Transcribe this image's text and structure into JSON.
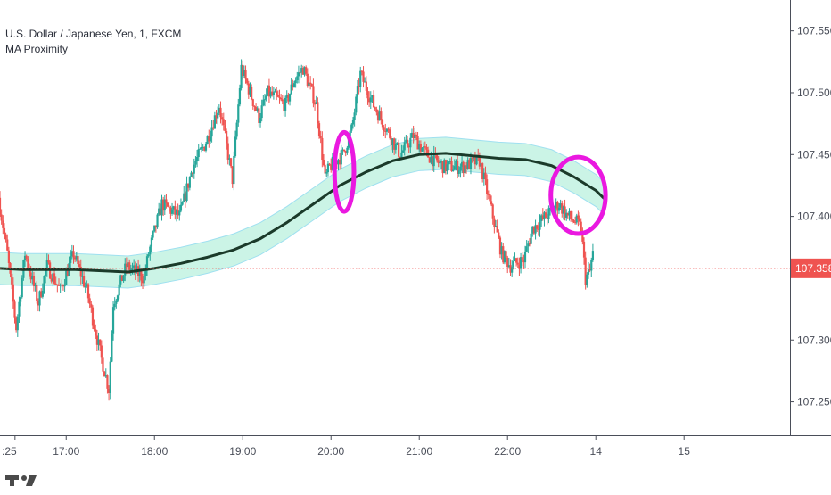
{
  "legend": {
    "symbol": "U.S. Dollar / Japanese Yen, 1, FXCM",
    "indicator": "MA Proximity"
  },
  "chart_data": {
    "type": "candlestick",
    "ylim": [
      107.223,
      107.575
    ],
    "x_range_hours": [
      16.25,
      25.2
    ],
    "y_ticks": [
      "107.550",
      "107.500",
      "107.450",
      "107.400",
      "107.358",
      "107.300",
      "107.250"
    ],
    "y_tick_values": [
      107.55,
      107.5,
      107.45,
      107.4,
      107.3,
      107.25
    ],
    "x_ticks": [
      ":25",
      "17:00",
      "18:00",
      "19:00",
      "20:00",
      "21:00",
      "22:00",
      "14",
      "15"
    ],
    "x_tick_values": [
      16.42,
      17.0,
      18.0,
      19.0,
      20.0,
      21.0,
      22.0,
      23.0,
      24.0
    ],
    "current_price": {
      "label": "107.358",
      "value": 107.358
    },
    "price_path": [
      [
        16.25,
        107.415
      ],
      [
        16.35,
        107.37
      ],
      [
        16.45,
        107.31
      ],
      [
        16.55,
        107.37
      ],
      [
        16.7,
        107.33
      ],
      [
        16.8,
        107.36
      ],
      [
        16.95,
        107.34
      ],
      [
        17.1,
        107.37
      ],
      [
        17.25,
        107.34
      ],
      [
        17.4,
        107.29
      ],
      [
        17.5,
        107.26
      ],
      [
        17.55,
        107.33
      ],
      [
        17.7,
        107.36
      ],
      [
        17.9,
        107.35
      ],
      [
        17.95,
        107.37
      ],
      [
        18.1,
        107.41
      ],
      [
        18.3,
        107.4
      ],
      [
        18.45,
        107.44
      ],
      [
        18.6,
        107.46
      ],
      [
        18.75,
        107.49
      ],
      [
        18.9,
        107.43
      ],
      [
        19.0,
        107.52
      ],
      [
        19.2,
        107.48
      ],
      [
        19.3,
        107.5
      ],
      [
        19.5,
        107.49
      ],
      [
        19.6,
        107.51
      ],
      [
        19.7,
        107.52
      ],
      [
        19.85,
        107.49
      ],
      [
        19.95,
        107.43
      ],
      [
        20.0,
        107.44
      ],
      [
        20.15,
        107.45
      ],
      [
        20.25,
        107.47
      ],
      [
        20.35,
        107.515
      ],
      [
        20.5,
        107.49
      ],
      [
        20.65,
        107.47
      ],
      [
        20.8,
        107.45
      ],
      [
        20.95,
        107.465
      ],
      [
        21.1,
        107.45
      ],
      [
        21.3,
        107.44
      ],
      [
        21.5,
        107.44
      ],
      [
        21.7,
        107.445
      ],
      [
        21.85,
        107.4
      ],
      [
        21.95,
        107.37
      ],
      [
        22.05,
        107.36
      ],
      [
        22.2,
        107.365
      ],
      [
        22.3,
        107.39
      ],
      [
        22.45,
        107.4
      ],
      [
        22.6,
        107.41
      ],
      [
        22.7,
        107.4
      ],
      [
        22.8,
        107.395
      ],
      [
        22.85,
        107.39
      ],
      [
        22.9,
        107.35
      ],
      [
        22.95,
        107.355
      ],
      [
        22.98,
        107.37
      ]
    ],
    "moving_average": [
      [
        16.25,
        107.358
      ],
      [
        16.5,
        107.357
      ],
      [
        16.8,
        107.357
      ],
      [
        17.1,
        107.357
      ],
      [
        17.4,
        107.356
      ],
      [
        17.7,
        107.355
      ],
      [
        18.0,
        107.358
      ],
      [
        18.3,
        107.362
      ],
      [
        18.6,
        107.367
      ],
      [
        18.9,
        107.373
      ],
      [
        19.2,
        107.382
      ],
      [
        19.5,
        107.395
      ],
      [
        19.8,
        107.41
      ],
      [
        20.1,
        107.425
      ],
      [
        20.4,
        107.436
      ],
      [
        20.7,
        107.445
      ],
      [
        21.0,
        107.45
      ],
      [
        21.3,
        107.451
      ],
      [
        21.6,
        107.449
      ],
      [
        21.9,
        107.447
      ],
      [
        22.2,
        107.446
      ],
      [
        22.5,
        107.441
      ],
      [
        22.75,
        107.432
      ],
      [
        23.0,
        107.421
      ],
      [
        23.1,
        107.414
      ]
    ],
    "band_half_width": 0.013,
    "highlights": [
      {
        "x": 20.15,
        "y": 107.436,
        "rx_hours": 0.11,
        "ry_price": 0.032
      },
      {
        "x": 22.8,
        "y": 107.417,
        "rx_hours": 0.31,
        "ry_price": 0.031
      }
    ],
    "colors": {
      "up": "#26a69a",
      "down": "#ef5350",
      "ma": "#1b3a2a",
      "band_fill": "#b9f0dd",
      "band_edge": "#9fe0f0",
      "highlight": "#ea18e0",
      "price_line": "#ef5350",
      "price_label_bg": "#ef5350",
      "price_label_text": "#ffffff"
    }
  }
}
